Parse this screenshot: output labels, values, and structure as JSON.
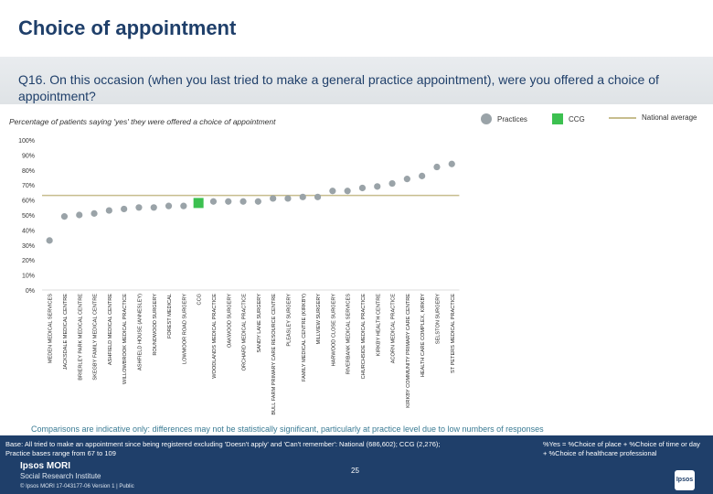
{
  "page": {
    "title": "Choice of appointment",
    "question": "Q16. On this occasion (when you last tried to make a general practice appointment), were you offered a choice of appointment?",
    "note": "Comparisons are indicative only: differences may not be statistically significant, particularly at practice level due to low numbers of responses",
    "base_line1": "Base: All tried to make an appointment since being registered excluding 'Doesn't apply' and 'Can't remember': National (686,602); CCG (2,276);",
    "base_line2": "Practice bases range from 67 to 109",
    "definition_line1": "%Yes = %Choice of place + %Choice of time or day",
    "definition_line2": "+ %Choice of healthcare professional",
    "page_number": "25",
    "brand_name": "Ipsos MORI",
    "brand_sub": "Social Research Institute",
    "copyright": "© Ipsos MORI     17-043177-06 Version 1 | Public",
    "logo_text": "Ipsos"
  },
  "colors": {
    "practice": "#9aa3a8",
    "ccg": "#3cc050",
    "national": "#c7bd8e",
    "navy": "#1f3f6a"
  },
  "chart_data": {
    "type": "scatter",
    "subtitle": "Percentage of patients saying 'yes' they were offered a choice of appointment",
    "legend": [
      "Practices",
      "CCG",
      "National average"
    ],
    "y_ticks": [
      "0%",
      "10%",
      "20%",
      "30%",
      "40%",
      "50%",
      "60%",
      "70%",
      "80%",
      "90%",
      "100%"
    ],
    "ylim": [
      0,
      100
    ],
    "national_average": 63,
    "categories": [
      "MEDEN MEDICAL SERVICES",
      "JACKSDALE MEDICAL CENTRE",
      "BRIERLEY PARK MEDICAL CENTRE",
      "SKEGBY FAMILY MEDICAL CENTRE",
      "ASHFIELD MEDICAL CENTRE",
      "WILLOWBROOK MEDICAL PRACTICE",
      "ASHFIELD HOUSE (ANNESLEY)",
      "ROUNDWOOD SURGERY",
      "FOREST MEDICAL",
      "LOWMOOR ROAD SURGERY",
      "CCG",
      "WOODLANDS MEDICAL PRACTICE",
      "OAKWOOD SURGERY",
      "ORCHARD MEDICAL PRACTICE",
      "SANDY LANE SURGERY",
      "BULL FARM PRIMARY CARE RESOURCE CENTRE",
      "PLEASLEY SURGERY",
      "FAMILY MEDICAL CENTRE (KIRKBY)",
      "MILLVIEW SURGERY",
      "HARWOOD CLOSE SURGERY",
      "RIVERBANK MEDICAL SERVICES",
      "CHURCHSIDE MEDICAL PRACTICE",
      "KIRKBY HEALTH CENTRE",
      "ACORN MEDICAL PRACTICE",
      "KIRKBY COMMUNITY PRIMARY CARE CENTRE",
      "HEALTH CARE COMPLEX, KIRKBY",
      "SELSTON SURGERY",
      "ST PETERS MEDICAL PRACTICE"
    ],
    "values": [
      33,
      49,
      50,
      51,
      53,
      54,
      55,
      55,
      56,
      56,
      58,
      59,
      59,
      59,
      59,
      61,
      61,
      62,
      62,
      66,
      66,
      68,
      69,
      71,
      74,
      76,
      82,
      84
    ],
    "ccg_index": 10
  }
}
